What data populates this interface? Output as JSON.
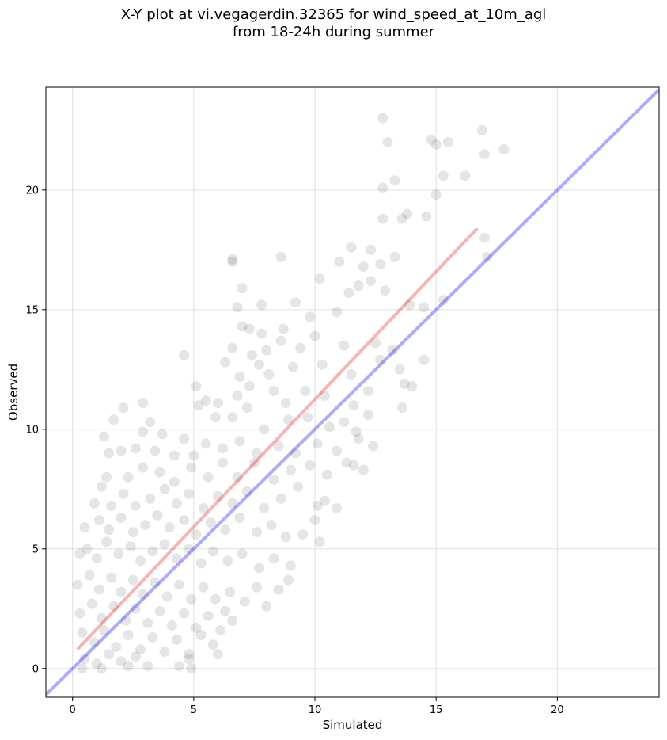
{
  "title": {
    "line1": "X-Y plot at vi.vegagerdin.32365 for wind_speed_at_10m_agl",
    "line2": "from 18-24h during summer"
  },
  "colors": {
    "points": "#000000",
    "identity_line": "#0000ff",
    "fit_line": "#e41a1c",
    "grid": "#cccccc"
  },
  "chart_data": {
    "type": "scatter",
    "xlabel": "Simulated",
    "ylabel": "Observed",
    "xlim": [
      -1.1,
      24.2
    ],
    "ylim": [
      -1.2,
      24.3
    ],
    "xticks": [
      0,
      5,
      10,
      15,
      20
    ],
    "yticks": [
      0,
      5,
      10,
      15,
      20
    ],
    "grid": true,
    "point_count_estimate": 1500,
    "lines": [
      {
        "role": "identity",
        "x": [
          -1.1,
          24.2
        ],
        "y": [
          -1.1,
          24.2
        ]
      },
      {
        "role": "linear fit",
        "x": [
          0.2,
          16.7
        ],
        "y": [
          0.8,
          18.4
        ]
      }
    ],
    "points": [
      [
        12.8,
        23.0
      ],
      [
        13.0,
        22.0
      ],
      [
        16.9,
        22.5
      ],
      [
        14.8,
        22.1
      ],
      [
        15.0,
        21.9
      ],
      [
        15.5,
        22.0
      ],
      [
        17.0,
        21.5
      ],
      [
        17.8,
        21.7
      ],
      [
        16.2,
        20.6
      ],
      [
        15.3,
        20.6
      ],
      [
        12.8,
        20.1
      ],
      [
        13.3,
        20.4
      ],
      [
        15.0,
        19.8
      ],
      [
        17.0,
        18.0
      ],
      [
        14.6,
        18.9
      ],
      [
        13.6,
        18.8
      ],
      [
        13.8,
        19.0
      ],
      [
        12.8,
        18.8
      ],
      [
        17.1,
        17.2
      ],
      [
        6.6,
        17.1
      ],
      [
        6.6,
        17.0
      ],
      [
        8.6,
        17.2
      ],
      [
        11.0,
        17.0
      ],
      [
        11.5,
        17.6
      ],
      [
        12.3,
        17.5
      ],
      [
        13.3,
        17.2
      ],
      [
        12.0,
        16.8
      ],
      [
        12.7,
        16.9
      ],
      [
        11.8,
        16.0
      ],
      [
        12.9,
        15.8
      ],
      [
        12.3,
        16.2
      ],
      [
        10.2,
        16.3
      ],
      [
        11.4,
        15.7
      ],
      [
        7.0,
        15.9
      ],
      [
        6.8,
        15.1
      ],
      [
        7.8,
        15.2
      ],
      [
        9.2,
        15.3
      ],
      [
        13.9,
        15.2
      ],
      [
        14.5,
        15.1
      ],
      [
        15.3,
        15.4
      ],
      [
        9.8,
        14.7
      ],
      [
        10.9,
        14.9
      ],
      [
        7.0,
        14.3
      ],
      [
        7.3,
        14.2
      ],
      [
        7.8,
        14.0
      ],
      [
        8.7,
        14.2
      ],
      [
        6.6,
        13.4
      ],
      [
        7.4,
        13.1
      ],
      [
        8.0,
        13.3
      ],
      [
        8.6,
        13.7
      ],
      [
        9.4,
        13.4
      ],
      [
        10.0,
        13.9
      ],
      [
        11.2,
        13.5
      ],
      [
        12.5,
        13.6
      ],
      [
        13.2,
        13.3
      ],
      [
        4.6,
        13.1
      ],
      [
        6.3,
        12.8
      ],
      [
        6.9,
        12.2
      ],
      [
        7.7,
        12.7
      ],
      [
        8.1,
        12.3
      ],
      [
        9.1,
        12.6
      ],
      [
        10.3,
        12.7
      ],
      [
        11.5,
        12.3
      ],
      [
        12.7,
        12.9
      ],
      [
        14.5,
        12.9
      ],
      [
        13.5,
        12.5
      ],
      [
        5.1,
        11.8
      ],
      [
        6.0,
        11.1
      ],
      [
        6.8,
        11.4
      ],
      [
        7.3,
        11.8
      ],
      [
        8.3,
        11.6
      ],
      [
        8.8,
        11.1
      ],
      [
        9.6,
        11.6
      ],
      [
        10.4,
        11.4
      ],
      [
        11.6,
        11.0
      ],
      [
        12.2,
        11.6
      ],
      [
        13.7,
        11.9
      ],
      [
        14.0,
        11.8
      ],
      [
        13.6,
        10.9
      ],
      [
        2.1,
        10.9
      ],
      [
        2.9,
        11.1
      ],
      [
        3.2,
        10.3
      ],
      [
        1.7,
        10.4
      ],
      [
        2.9,
        9.9
      ],
      [
        3.7,
        9.8
      ],
      [
        4.6,
        9.6
      ],
      [
        5.2,
        11.0
      ],
      [
        5.5,
        11.2
      ],
      [
        5.9,
        10.5
      ],
      [
        6.6,
        10.5
      ],
      [
        7.2,
        10.9
      ],
      [
        7.9,
        10.0
      ],
      [
        8.9,
        10.4
      ],
      [
        9.7,
        10.5
      ],
      [
        10.6,
        10.1
      ],
      [
        11.2,
        10.3
      ],
      [
        11.7,
        9.9
      ],
      [
        12.2,
        10.6
      ],
      [
        1.5,
        9.0
      ],
      [
        2.0,
        9.1
      ],
      [
        1.3,
        9.7
      ],
      [
        2.6,
        9.2
      ],
      [
        3.4,
        9.1
      ],
      [
        4.2,
        8.9
      ],
      [
        5.0,
        8.9
      ],
      [
        5.5,
        9.4
      ],
      [
        6.2,
        9.2
      ],
      [
        6.9,
        9.5
      ],
      [
        7.6,
        9.0
      ],
      [
        8.5,
        9.3
      ],
      [
        9.2,
        9.0
      ],
      [
        10.1,
        9.4
      ],
      [
        10.9,
        9.1
      ],
      [
        11.8,
        9.6
      ],
      [
        12.4,
        9.3
      ],
      [
        1.2,
        7.6
      ],
      [
        1.4,
        8.0
      ],
      [
        2.3,
        8.0
      ],
      [
        2.9,
        8.4
      ],
      [
        3.6,
        8.2
      ],
      [
        4.2,
        7.8
      ],
      [
        4.9,
        8.4
      ],
      [
        5.6,
        8.0
      ],
      [
        6.2,
        8.6
      ],
      [
        6.8,
        8.0
      ],
      [
        7.5,
        8.6
      ],
      [
        8.3,
        7.9
      ],
      [
        9.0,
        8.3
      ],
      [
        9.8,
        8.5
      ],
      [
        10.5,
        8.1
      ],
      [
        11.3,
        8.6
      ],
      [
        12.0,
        8.3
      ],
      [
        11.6,
        8.5
      ],
      [
        0.9,
        6.9
      ],
      [
        1.6,
        6.8
      ],
      [
        2.1,
        7.3
      ],
      [
        2.6,
        6.8
      ],
      [
        3.2,
        7.1
      ],
      [
        3.8,
        7.5
      ],
      [
        4.3,
        6.9
      ],
      [
        4.8,
        7.3
      ],
      [
        5.4,
        6.7
      ],
      [
        6.0,
        7.2
      ],
      [
        6.6,
        6.9
      ],
      [
        7.2,
        7.4
      ],
      [
        7.9,
        6.7
      ],
      [
        8.6,
        7.1
      ],
      [
        9.3,
        7.6
      ],
      [
        10.1,
        6.8
      ],
      [
        10.4,
        7.0
      ],
      [
        10.9,
        6.7
      ],
      [
        0.5,
        5.9
      ],
      [
        1.1,
        6.2
      ],
      [
        1.5,
        5.8
      ],
      [
        2.0,
        6.3
      ],
      [
        2.5,
        5.7
      ],
      [
        3.0,
        6.0
      ],
      [
        3.5,
        6.4
      ],
      [
        4.0,
        5.9
      ],
      [
        4.6,
        6.2
      ],
      [
        5.1,
        5.6
      ],
      [
        5.7,
        6.1
      ],
      [
        6.3,
        5.8
      ],
      [
        6.9,
        6.3
      ],
      [
        7.6,
        5.7
      ],
      [
        8.2,
        6.0
      ],
      [
        8.8,
        5.5
      ],
      [
        9.5,
        5.6
      ],
      [
        10.0,
        6.2
      ],
      [
        10.2,
        5.3
      ],
      [
        0.3,
        4.8
      ],
      [
        0.6,
        5.0
      ],
      [
        1.0,
        4.6
      ],
      [
        1.4,
        5.3
      ],
      [
        1.9,
        4.8
      ],
      [
        2.4,
        5.1
      ],
      [
        2.8,
        4.5
      ],
      [
        3.3,
        4.9
      ],
      [
        3.8,
        5.2
      ],
      [
        4.3,
        4.6
      ],
      [
        4.8,
        5.0
      ],
      [
        5.3,
        4.4
      ],
      [
        5.8,
        4.9
      ],
      [
        6.4,
        4.5
      ],
      [
        7.0,
        4.8
      ],
      [
        7.7,
        4.2
      ],
      [
        8.3,
        4.6
      ],
      [
        9.0,
        4.3
      ],
      [
        0.2,
        3.5
      ],
      [
        0.7,
        3.9
      ],
      [
        1.1,
        3.3
      ],
      [
        1.6,
        3.8
      ],
      [
        2.0,
        3.2
      ],
      [
        2.5,
        3.7
      ],
      [
        2.9,
        3.1
      ],
      [
        3.4,
        3.6
      ],
      [
        3.9,
        3.0
      ],
      [
        4.4,
        3.5
      ],
      [
        4.9,
        2.9
      ],
      [
        5.4,
        3.4
      ],
      [
        5.9,
        2.9
      ],
      [
        6.5,
        3.2
      ],
      [
        7.1,
        2.8
      ],
      [
        7.6,
        3.4
      ],
      [
        8.5,
        3.3
      ],
      [
        8.9,
        3.7
      ],
      [
        8.0,
        2.6
      ],
      [
        0.3,
        2.3
      ],
      [
        0.8,
        2.7
      ],
      [
        1.2,
        2.1
      ],
      [
        1.7,
        2.6
      ],
      [
        2.2,
        2.0
      ],
      [
        2.6,
        2.5
      ],
      [
        3.1,
        1.9
      ],
      [
        3.6,
        2.4
      ],
      [
        4.1,
        1.8
      ],
      [
        4.6,
        2.3
      ],
      [
        5.1,
        1.7
      ],
      [
        5.6,
        2.2
      ],
      [
        6.1,
        1.6
      ],
      [
        6.6,
        2.0
      ],
      [
        6.3,
        2.4
      ],
      [
        5.8,
        1.0
      ],
      [
        0.4,
        1.5
      ],
      [
        0.9,
        1.1
      ],
      [
        1.3,
        1.6
      ],
      [
        1.8,
        0.9
      ],
      [
        2.3,
        1.4
      ],
      [
        2.8,
        0.8
      ],
      [
        3.3,
        1.3
      ],
      [
        3.8,
        0.7
      ],
      [
        4.3,
        1.2
      ],
      [
        4.8,
        0.6
      ],
      [
        5.3,
        1.4
      ],
      [
        6.0,
        0.6
      ],
      [
        0.5,
        0.4
      ],
      [
        1.0,
        0.2
      ],
      [
        1.5,
        0.6
      ],
      [
        2.0,
        0.3
      ],
      [
        2.6,
        0.5
      ],
      [
        3.1,
        0.1
      ],
      [
        4.4,
        0.1
      ],
      [
        4.9,
        0.0
      ],
      [
        4.8,
        0.4
      ],
      [
        0.4,
        0.0
      ],
      [
        1.2,
        0.0
      ],
      [
        2.3,
        0.1
      ]
    ]
  }
}
